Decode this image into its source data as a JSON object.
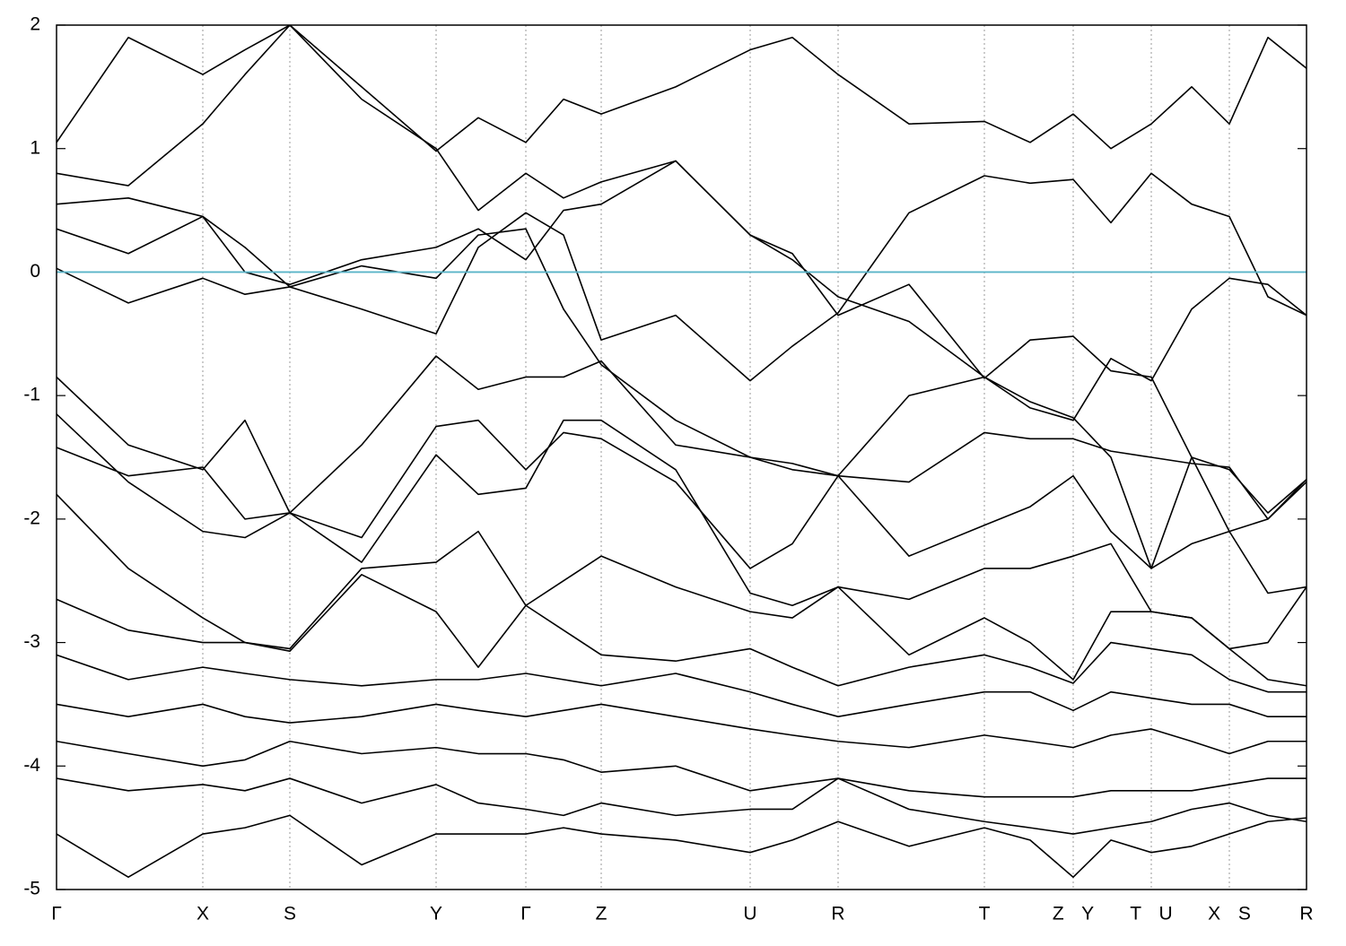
{
  "chart_data": {
    "type": "line",
    "x": [
      0,
      80,
      163,
      210,
      260,
      340,
      423,
      470,
      523,
      565,
      607,
      690,
      773,
      820,
      871,
      950,
      1034,
      1085,
      1133,
      1175,
      1220,
      1265,
      1307,
      1350,
      1393
    ],
    "series": [
      {
        "color": "#000000",
        "values": [
          0.03,
          -0.25,
          -0.05,
          -0.18,
          -0.12,
          -0.3,
          -0.5,
          0.2,
          0.48,
          0.3,
          -0.55,
          -0.35,
          -0.88,
          -0.6,
          -0.33,
          0.48,
          0.78,
          0.72,
          0.75,
          0.4,
          0.8,
          0.55,
          0.45,
          -0.2,
          -0.35
        ]
      },
      {
        "color": "#000000",
        "values": [
          0.35,
          0.15,
          0.45,
          0.2,
          -0.12,
          0.05,
          -0.05,
          0.3,
          0.35,
          -0.3,
          -0.75,
          -1.2,
          -1.5,
          -1.6,
          -1.65,
          -1.0,
          -0.85,
          -1.1,
          -1.2,
          -0.7,
          -0.88,
          -0.3,
          -0.05,
          -0.1,
          -0.35
        ]
      },
      {
        "color": "#000000",
        "values": [
          0.55,
          0.6,
          0.45,
          0.0,
          -0.1,
          0.1,
          0.2,
          0.35,
          0.1,
          0.5,
          0.55,
          0.9,
          0.3,
          0.1,
          -0.2,
          -0.4,
          -0.85,
          -1.05,
          -1.18,
          -1.5,
          -2.4,
          -1.5,
          -1.6,
          -1.95,
          -1.68
        ]
      },
      {
        "color": "#000000",
        "values": [
          0.8,
          0.7,
          1.2,
          1.6,
          2.0,
          1.4,
          1.0,
          0.5,
          0.8,
          0.6,
          0.73,
          0.9,
          0.3,
          0.15,
          -0.35,
          -0.1,
          -0.86,
          -0.55,
          -0.52,
          -0.8,
          -0.85,
          -1.5,
          -2.1,
          -2.0,
          -1.7
        ]
      },
      {
        "color": "#000000",
        "values": [
          1.05,
          1.9,
          1.6,
          1.8,
          2.0,
          1.5,
          0.98,
          1.25,
          1.05,
          1.4,
          1.28,
          1.5,
          1.8,
          1.9,
          1.6,
          1.2,
          1.22,
          1.05,
          1.28,
          1.0,
          1.2,
          1.5,
          1.2,
          1.9,
          1.65
        ]
      },
      {
        "color": "#000000",
        "values": [
          -0.85,
          -1.4,
          -1.6,
          -1.2,
          -1.95,
          -1.4,
          -0.68,
          -0.95,
          -0.85,
          -0.85,
          -0.72,
          -1.4,
          -1.5,
          -1.55,
          -1.65,
          -1.7,
          -1.3,
          -1.35,
          -1.35,
          -1.45,
          -1.5,
          -1.55,
          -1.58,
          -2.0,
          -1.68
        ]
      },
      {
        "color": "#000000",
        "values": [
          -1.15,
          -1.7,
          -2.1,
          -2.15,
          -1.95,
          -2.15,
          -1.25,
          -1.2,
          -1.6,
          -1.3,
          -1.35,
          -1.7,
          -2.4,
          -2.2,
          -1.65,
          -2.3,
          -2.05,
          -1.9,
          -1.65,
          -2.1,
          -2.4,
          -2.2,
          -2.1,
          -2.6,
          -2.55
        ]
      },
      {
        "color": "#000000",
        "values": [
          -1.42,
          -1.65,
          -1.58,
          -2.0,
          -1.95,
          -2.35,
          -1.48,
          -1.8,
          -1.75,
          -1.2,
          -1.2,
          -1.6,
          -2.6,
          -2.7,
          -2.55,
          -2.65,
          -2.4,
          -2.4,
          -2.3,
          -2.2,
          -2.75,
          -2.8,
          -3.05,
          -3.0,
          -2.55
        ]
      },
      {
        "color": "#000000",
        "values": [
          -1.8,
          -2.4,
          -2.8,
          -3.0,
          -3.05,
          -2.4,
          -2.35,
          -2.1,
          -2.7,
          -2.5,
          -2.3,
          -2.55,
          -2.75,
          -2.8,
          -2.55,
          -3.1,
          -2.8,
          -3.0,
          -3.3,
          -2.75,
          -2.75,
          -2.8,
          -3.05,
          -3.3,
          -3.35
        ]
      },
      {
        "color": "#000000",
        "values": [
          -2.65,
          -2.9,
          -3.0,
          -3.0,
          -3.07,
          -2.45,
          -2.75,
          -3.2,
          -2.7,
          -2.9,
          -3.1,
          -3.15,
          -3.05,
          -3.2,
          -3.35,
          -3.2,
          -3.1,
          -3.2,
          -3.33,
          -3.0,
          -3.05,
          -3.1,
          -3.3,
          -3.4,
          -3.4
        ]
      },
      {
        "color": "#000000",
        "values": [
          -3.1,
          -3.3,
          -3.2,
          -3.25,
          -3.3,
          -3.35,
          -3.3,
          -3.3,
          -3.25,
          -3.3,
          -3.35,
          -3.25,
          -3.4,
          -3.5,
          -3.6,
          -3.5,
          -3.4,
          -3.4,
          -3.55,
          -3.4,
          -3.45,
          -3.5,
          -3.5,
          -3.6,
          -3.6
        ]
      },
      {
        "color": "#000000",
        "values": [
          -3.5,
          -3.6,
          -3.5,
          -3.6,
          -3.65,
          -3.6,
          -3.5,
          -3.55,
          -3.6,
          -3.55,
          -3.5,
          -3.6,
          -3.7,
          -3.75,
          -3.8,
          -3.85,
          -3.75,
          -3.8,
          -3.85,
          -3.75,
          -3.7,
          -3.8,
          -3.9,
          -3.8,
          -3.8
        ]
      },
      {
        "color": "#000000",
        "values": [
          -3.8,
          -3.9,
          -4.0,
          -3.95,
          -3.8,
          -3.9,
          -3.85,
          -3.9,
          -3.9,
          -3.95,
          -4.05,
          -4.0,
          -4.2,
          -4.15,
          -4.1,
          -4.2,
          -4.25,
          -4.25,
          -4.25,
          -4.2,
          -4.2,
          -4.2,
          -4.15,
          -4.1,
          -4.1
        ]
      },
      {
        "color": "#000000",
        "values": [
          -4.1,
          -4.2,
          -4.15,
          -4.2,
          -4.1,
          -4.3,
          -4.15,
          -4.3,
          -4.35,
          -4.4,
          -4.3,
          -4.4,
          -4.35,
          -4.35,
          -4.1,
          -4.35,
          -4.45,
          -4.5,
          -4.55,
          -4.5,
          -4.45,
          -4.35,
          -4.3,
          -4.4,
          -4.45
        ]
      },
      {
        "color": "#000000",
        "values": [
          -4.55,
          -4.9,
          -4.55,
          -4.5,
          -4.4,
          -4.8,
          -4.55,
          -4.55,
          -4.55,
          -4.5,
          -4.55,
          -4.6,
          -4.7,
          -4.6,
          -4.45,
          -4.65,
          -4.5,
          -4.6,
          -4.9,
          -4.6,
          -4.7,
          -4.65,
          -4.55,
          -4.45,
          -4.42
        ]
      }
    ],
    "xlim": [
      0,
      1393
    ],
    "xticks": [
      {
        "value": 0,
        "label": "Γ"
      },
      {
        "value": 163,
        "label": "X"
      },
      {
        "value": 260,
        "label": "S"
      },
      {
        "value": 423,
        "label": "Y"
      },
      {
        "value": 523,
        "label": "Γ"
      },
      {
        "value": 607,
        "label": "Z"
      },
      {
        "value": 773,
        "label": "U"
      },
      {
        "value": 871,
        "label": "R"
      },
      {
        "value": 1034,
        "label": "T"
      },
      {
        "value": 1133,
        "label": "Z Y"
      },
      {
        "value": 1220,
        "label": "T U"
      },
      {
        "value": 1307,
        "label": "X S"
      },
      {
        "value": 1393,
        "label": "R"
      }
    ],
    "ylim": [
      -5,
      2
    ],
    "yticks": [
      -5,
      -4,
      -3,
      -2,
      -1,
      0,
      1,
      2
    ],
    "grid": true,
    "fermi_level": 0,
    "fermi_color": "#5ab4c8"
  }
}
